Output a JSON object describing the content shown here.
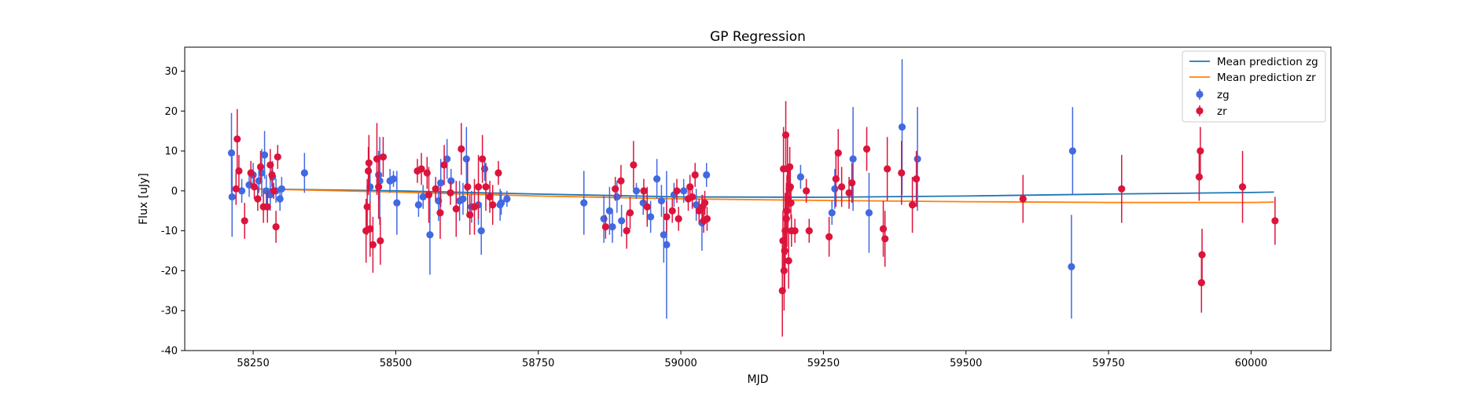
{
  "chart_data": {
    "type": "scatter",
    "title": "GP Regression",
    "xlabel": "MJD",
    "ylabel": "Flux [uJy]",
    "xlim": [
      58130,
      60140
    ],
    "ylim": [
      -40,
      36
    ],
    "xticks": [
      58250,
      58500,
      58750,
      59000,
      59250,
      59500,
      59750,
      60000
    ],
    "yticks": [
      -40,
      -30,
      -20,
      -10,
      0,
      10,
      20,
      30
    ],
    "grid": false,
    "legend_position": "top-right",
    "colors": {
      "zg": "#4169e1",
      "zr": "#dc143c",
      "mean_zg": "#1f77b4",
      "mean_zr": "#ff7f0e"
    },
    "lines": [
      {
        "name": "Mean prediction zg",
        "x": [
          58250,
          58500,
          58750,
          59000,
          59250,
          59500,
          59750,
          60000,
          60040
        ],
        "y": [
          0.5,
          0.0,
          -0.8,
          -1.5,
          -1.6,
          -1.3,
          -0.8,
          -0.4,
          -0.3
        ]
      },
      {
        "name": "Mean prediction zr",
        "x": [
          58250,
          58500,
          58750,
          59000,
          59250,
          59500,
          59750,
          60000,
          60040
        ],
        "y": [
          0.5,
          -0.3,
          -1.3,
          -2.0,
          -2.4,
          -2.7,
          -2.9,
          -2.9,
          -2.8
        ]
      }
    ],
    "series": [
      {
        "name": "zg",
        "x": [
          58212,
          58213,
          58230,
          58243,
          58250,
          58260,
          58265,
          58270,
          58273,
          58280,
          58284,
          58290,
          58297,
          58300,
          58340,
          58455,
          58470,
          58472,
          58490,
          58496,
          58502,
          58540,
          58548,
          58560,
          58575,
          58579,
          58590,
          58597,
          58612,
          58618,
          58624,
          58633,
          58645,
          58650,
          58656,
          58683,
          58685,
          58695,
          58830,
          58865,
          58875,
          58880,
          58888,
          58896,
          58922,
          58934,
          58947,
          58958,
          58966,
          58970,
          58975,
          58988,
          59005,
          59027,
          59037,
          59045,
          59210,
          59265,
          59270,
          59302,
          59330,
          59388,
          59415,
          59685,
          59687
        ],
        "y": [
          9.5,
          -1.5,
          0.0,
          1.5,
          4.0,
          2.5,
          4.5,
          9.0,
          0.0,
          -1.0,
          3.5,
          0.0,
          -2.0,
          0.5,
          4.5,
          1.0,
          4.0,
          2.5,
          2.5,
          3.0,
          -3.0,
          -3.5,
          -1.5,
          -11.0,
          -2.5,
          2.0,
          8.0,
          2.5,
          -2.5,
          -2.0,
          8.0,
          -4.0,
          -3.5,
          -10.0,
          5.5,
          -3.5,
          -3.0,
          -2.0,
          -3.0,
          -7.0,
          -5.0,
          -9.0,
          -1.5,
          -7.5,
          0.0,
          -3.0,
          -6.5,
          3.0,
          -2.5,
          -11.0,
          -13.5,
          -1.0,
          0.0,
          -3.5,
          -8.0,
          4.0,
          3.5,
          -5.5,
          0.5,
          8.0,
          -5.5,
          16.0,
          8.0,
          -19.0,
          10.0
        ],
        "err": [
          10.0,
          10.0,
          3.0,
          3.0,
          3.0,
          3.0,
          6.0,
          6.0,
          4.0,
          4.0,
          4.0,
          3.0,
          3.0,
          3.0,
          5.0,
          6.0,
          6.0,
          11.0,
          3.0,
          2.0,
          8.0,
          3.0,
          3.0,
          10.0,
          5.0,
          6.0,
          5.0,
          3.0,
          5.0,
          4.0,
          8.0,
          4.0,
          5.0,
          6.0,
          3.0,
          4.0,
          3.0,
          2.0,
          8.0,
          6.0,
          6.0,
          4.0,
          4.0,
          4.0,
          2.0,
          3.0,
          4.0,
          5.0,
          4.0,
          7.0,
          18.5,
          3.0,
          3.0,
          4.0,
          7.0,
          3.0,
          3.0,
          3.0,
          5.0,
          13.0,
          10.0,
          17.0,
          13.0,
          13.0,
          11.0
        ]
      },
      {
        "name": "zr",
        "x": [
          58220,
          58222,
          58225,
          58235,
          58246,
          58252,
          58258,
          58263,
          58268,
          58275,
          58280,
          58283,
          58286,
          58290,
          58293,
          58448,
          58450,
          58452,
          58453,
          58455,
          58460,
          58467,
          58470,
          58473,
          58478,
          58538,
          58545,
          58555,
          58558,
          58570,
          58578,
          58585,
          58596,
          58606,
          58615,
          58626,
          58630,
          58638,
          58645,
          58652,
          58658,
          58665,
          58670,
          58680,
          58868,
          58885,
          58895,
          58905,
          58911,
          58917,
          58935,
          58941,
          58975,
          58985,
          58993,
          58996,
          59013,
          59016,
          59020,
          59025,
          59032,
          59038,
          59040,
          59042,
          59046,
          59178,
          59179,
          59180,
          59181,
          59182,
          59183,
          59184,
          59185,
          59186,
          59187,
          59188,
          59189,
          59190,
          59191,
          59192,
          59193,
          59194,
          59200,
          59220,
          59225,
          59260,
          59272,
          59276,
          59282,
          59295,
          59300,
          59326,
          59355,
          59358,
          59362,
          59387,
          59406,
          59413,
          59600,
          59773,
          59909,
          59911,
          59913,
          59914,
          59985,
          60042
        ],
        "y": [
          0.5,
          13.0,
          5.0,
          -7.5,
          4.5,
          1.0,
          -2.0,
          6.0,
          -4.0,
          -4.0,
          6.5,
          4.0,
          0.0,
          -9.0,
          8.5,
          -10.0,
          -4.0,
          5.0,
          7.0,
          -9.5,
          -13.5,
          8.0,
          1.0,
          -12.5,
          8.5,
          5.0,
          5.5,
          4.5,
          -1.0,
          0.5,
          -5.5,
          6.5,
          -0.5,
          -4.5,
          10.5,
          1.0,
          -6.0,
          -4.0,
          1.0,
          8.0,
          1.0,
          -1.5,
          -3.5,
          4.5,
          -9.0,
          0.5,
          2.5,
          -10.0,
          -5.5,
          6.5,
          0.0,
          -4.0,
          -6.5,
          -5.0,
          0.0,
          -7.0,
          -2.0,
          1.0,
          -1.5,
          4.0,
          -5.0,
          -4.0,
          -7.5,
          -3.0,
          -7.0,
          -25.0,
          -12.5,
          5.5,
          -20.0,
          -15.0,
          -10.0,
          14.0,
          -7.0,
          -5.0,
          5.5,
          -2.0,
          -17.5,
          0.5,
          6.0,
          1.0,
          -3.0,
          -10.0,
          -10.0,
          0.0,
          -10.0,
          -11.5,
          3.0,
          9.5,
          1.0,
          -0.5,
          2.0,
          10.5,
          -9.5,
          -12.0,
          5.5,
          4.5,
          -3.5,
          3.0,
          -2.0,
          0.5,
          3.5,
          10.0,
          -23.0,
          -16.0,
          1.0,
          -7.5
        ],
        "err": [
          4.0,
          7.5,
          4.0,
          4.5,
          3.0,
          3.0,
          3.0,
          4.0,
          4.0,
          4.0,
          4.0,
          3.0,
          2.0,
          4.0,
          3.0,
          8.0,
          7.0,
          6.0,
          7.0,
          7.0,
          7.0,
          9.0,
          8.0,
          6.0,
          5.0,
          3.0,
          4.0,
          4.0,
          7.0,
          3.0,
          6.5,
          5.0,
          3.0,
          7.0,
          6.5,
          7.0,
          5.0,
          7.0,
          8.0,
          6.0,
          6.0,
          4.0,
          5.0,
          3.0,
          3.0,
          3.0,
          4.0,
          4.5,
          4.0,
          6.0,
          3.0,
          5.0,
          4.0,
          3.0,
          3.0,
          3.0,
          3.0,
          3.0,
          3.0,
          3.0,
          3.0,
          3.0,
          3.0,
          3.0,
          3.0,
          11.5,
          7.5,
          10.5,
          10.0,
          10.0,
          9.5,
          8.5,
          9.0,
          9.0,
          9.0,
          8.0,
          7.0,
          6.0,
          5.0,
          5.0,
          4.0,
          4.0,
          3.0,
          3.0,
          3.0,
          5.0,
          7.0,
          6.0,
          5.0,
          4.0,
          5.0,
          5.5,
          7.0,
          7.0,
          8.0,
          8.0,
          7.0,
          7.0,
          6.0,
          8.5,
          6.0,
          6.0,
          7.5,
          6.5,
          9.0,
          6.0
        ]
      }
    ]
  }
}
